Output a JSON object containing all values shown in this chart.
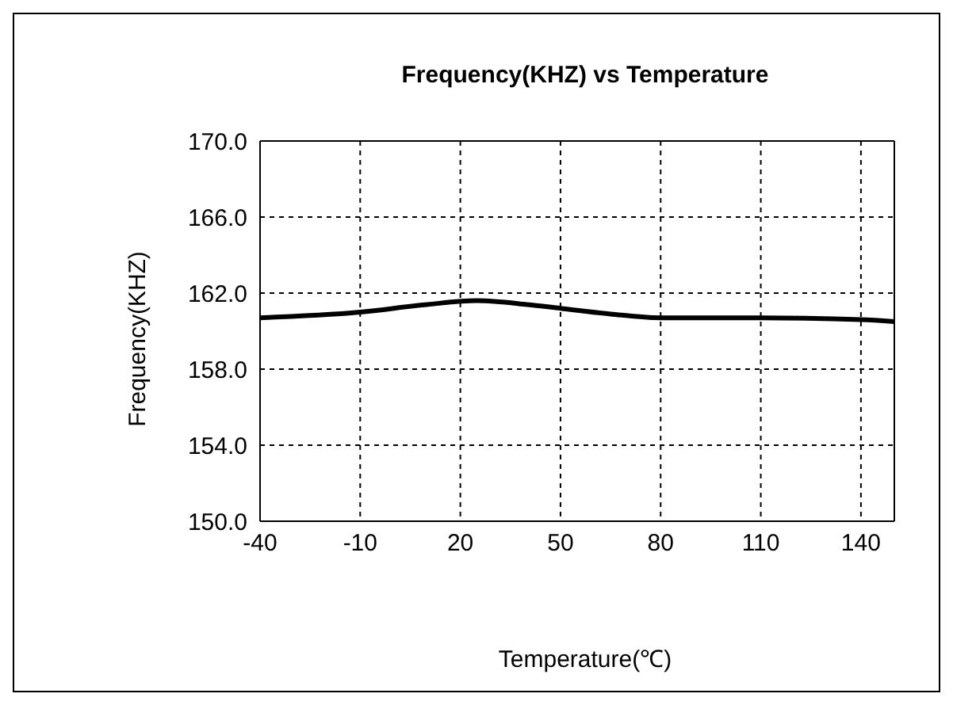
{
  "chart_data": {
    "type": "line",
    "title": "Frequency(KHZ) vs Temperature",
    "xlabel": "Temperature(℃)",
    "ylabel": "Frequency(KHZ)",
    "x": [
      -40,
      -10,
      10,
      25,
      40,
      50,
      65,
      80,
      110,
      140,
      150
    ],
    "series": [
      {
        "color": "#000000",
        "values": [
          160.7,
          161.0,
          161.4,
          161.6,
          161.4,
          161.2,
          160.9,
          160.7,
          160.7,
          160.6,
          160.5
        ]
      }
    ],
    "xlim": [
      -40,
      150
    ],
    "xticks": [
      -40,
      -10,
      20,
      50,
      80,
      110,
      140
    ],
    "ylim": [
      150,
      170
    ],
    "yticks": [
      {
        "value": 150,
        "label": "150.0"
      },
      {
        "value": 154,
        "label": "154.0"
      },
      {
        "value": 158,
        "label": "158.0"
      },
      {
        "value": 162,
        "label": "162.0"
      },
      {
        "value": 166,
        "label": "166.0"
      },
      {
        "value": 170,
        "label": "170.0"
      }
    ],
    "grid": true,
    "marker": "none",
    "line_style": "solid"
  }
}
